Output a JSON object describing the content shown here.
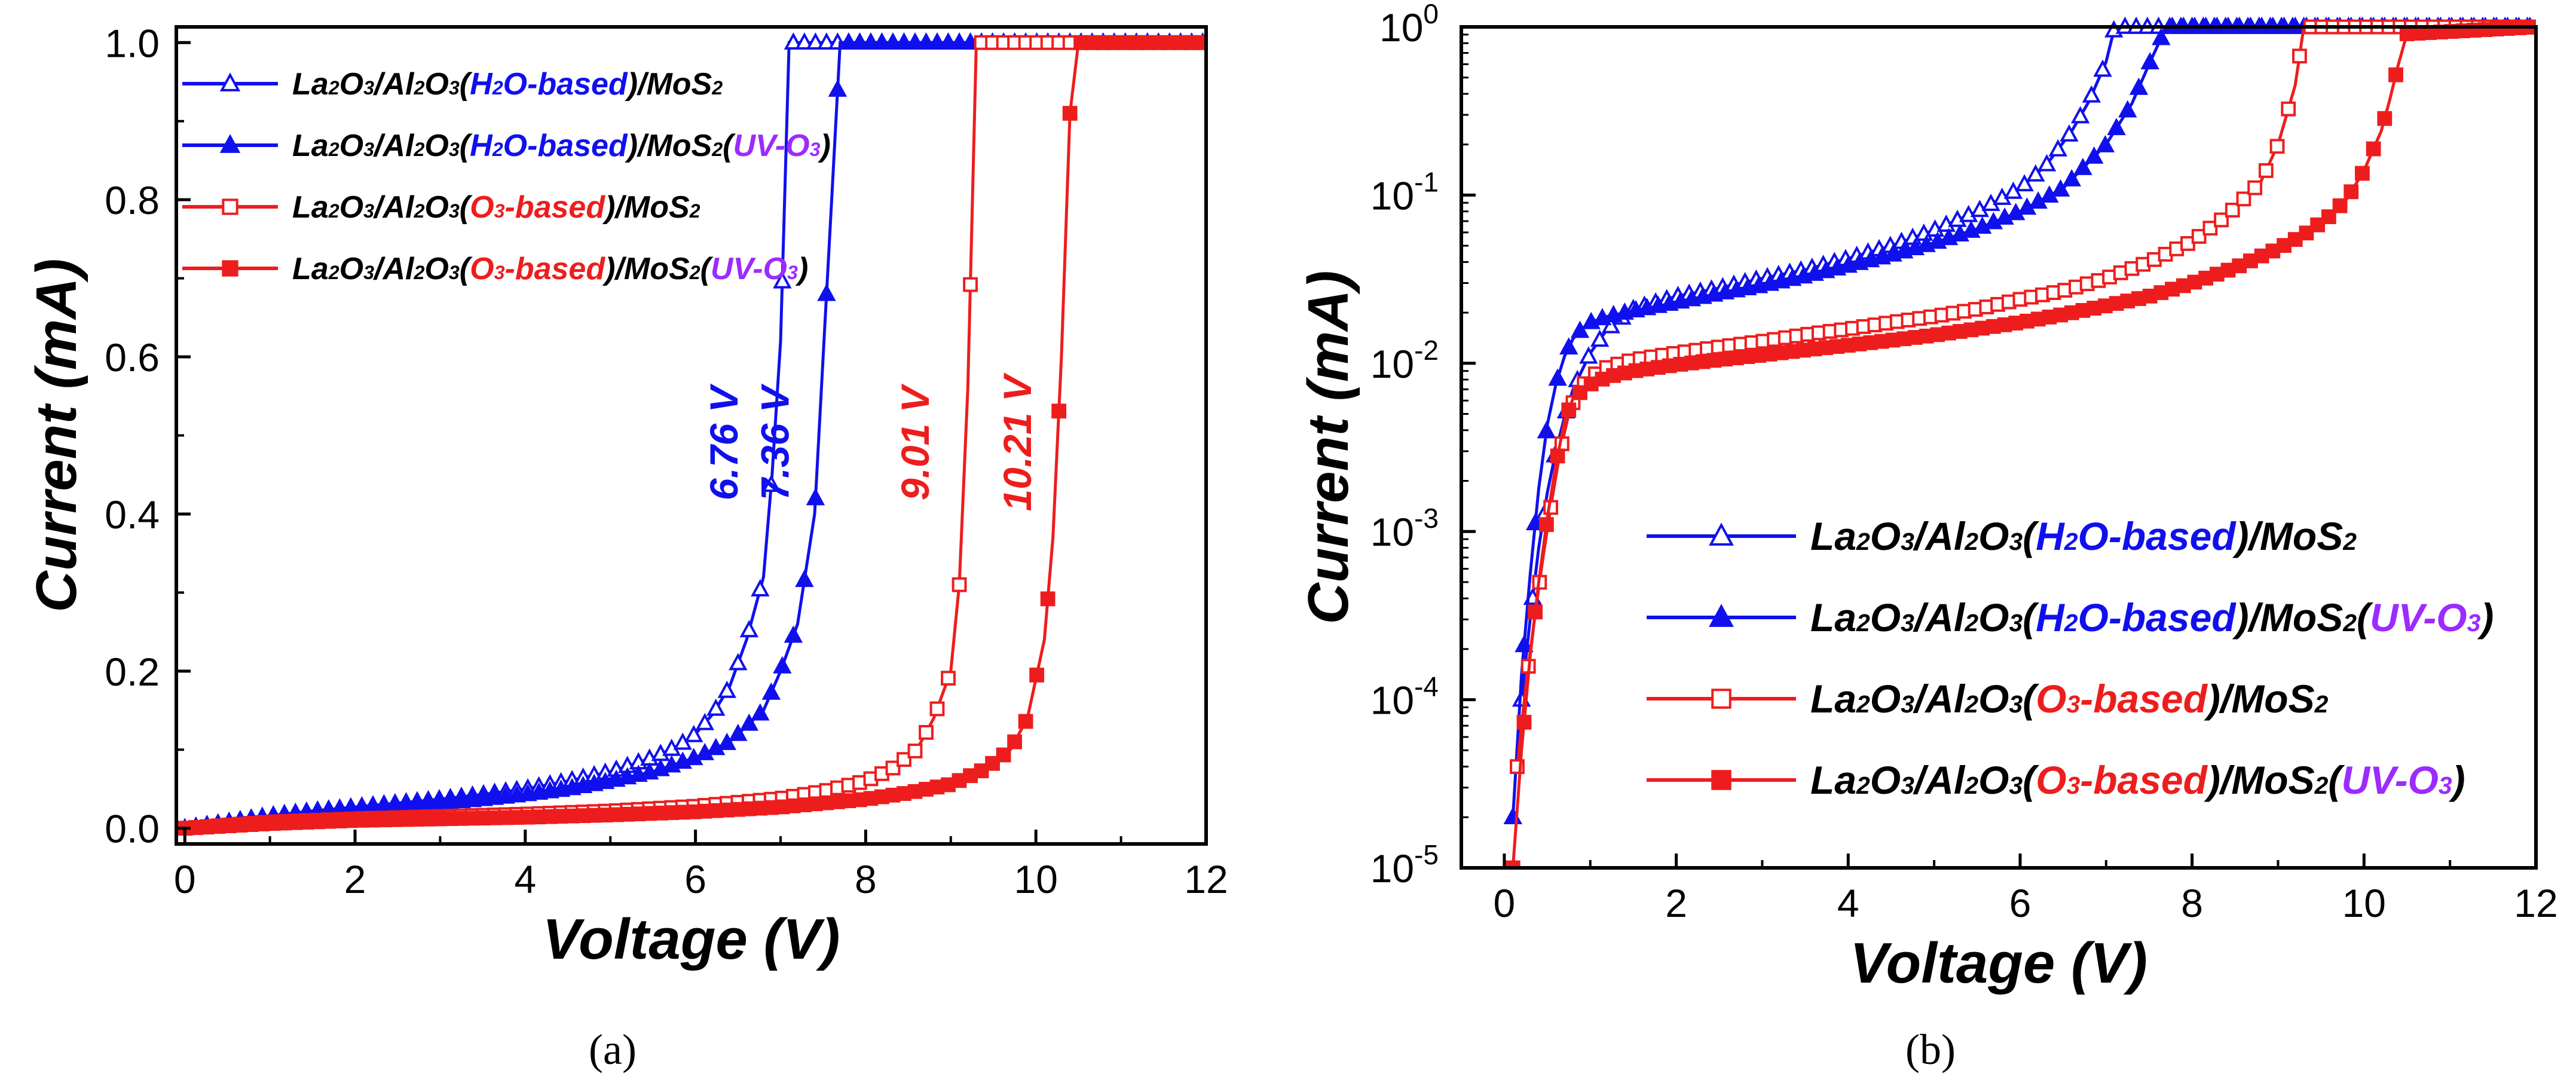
{
  "colors": {
    "blue": "#1010ee",
    "red": "#ee1d1d",
    "purple": "#9b2bff",
    "black": "#000000"
  },
  "legend_entries": [
    {
      "color": "#1010ee",
      "marker": "triangle-open",
      "parts": [
        {
          "t": "La",
          "c": "black"
        },
        {
          "t": "2",
          "c": "black",
          "s": 1
        },
        {
          "t": "O",
          "c": "black"
        },
        {
          "t": "3",
          "c": "black",
          "s": 1
        },
        {
          "t": "/Al",
          "c": "black"
        },
        {
          "t": "2",
          "c": "black",
          "s": 1
        },
        {
          "t": "O",
          "c": "black"
        },
        {
          "t": "3",
          "c": "black",
          "s": 1
        },
        {
          "t": "(",
          "c": "black"
        },
        {
          "t": "H",
          "c": "blue"
        },
        {
          "t": "2",
          "c": "blue",
          "s": 1
        },
        {
          "t": "O-based",
          "c": "blue"
        },
        {
          "t": ")/MoS",
          "c": "black"
        },
        {
          "t": "2",
          "c": "black",
          "s": 1
        }
      ]
    },
    {
      "color": "#1010ee",
      "marker": "triangle-filled",
      "parts": [
        {
          "t": "La",
          "c": "black"
        },
        {
          "t": "2",
          "c": "black",
          "s": 1
        },
        {
          "t": "O",
          "c": "black"
        },
        {
          "t": "3",
          "c": "black",
          "s": 1
        },
        {
          "t": "/Al",
          "c": "black"
        },
        {
          "t": "2",
          "c": "black",
          "s": 1
        },
        {
          "t": "O",
          "c": "black"
        },
        {
          "t": "3",
          "c": "black",
          "s": 1
        },
        {
          "t": "(",
          "c": "black"
        },
        {
          "t": "H",
          "c": "blue"
        },
        {
          "t": "2",
          "c": "blue",
          "s": 1
        },
        {
          "t": "O-based",
          "c": "blue"
        },
        {
          "t": ")/MoS",
          "c": "black"
        },
        {
          "t": "2",
          "c": "black",
          "s": 1
        },
        {
          "t": "(",
          "c": "black"
        },
        {
          "t": "UV-O",
          "c": "purple"
        },
        {
          "t": "3",
          "c": "purple",
          "s": 1
        },
        {
          "t": ")",
          "c": "black"
        }
      ]
    },
    {
      "color": "#ee1d1d",
      "marker": "square-open",
      "parts": [
        {
          "t": "La",
          "c": "black"
        },
        {
          "t": "2",
          "c": "black",
          "s": 1
        },
        {
          "t": "O",
          "c": "black"
        },
        {
          "t": "3",
          "c": "black",
          "s": 1
        },
        {
          "t": "/Al",
          "c": "black"
        },
        {
          "t": "2",
          "c": "black",
          "s": 1
        },
        {
          "t": "O",
          "c": "black"
        },
        {
          "t": "3",
          "c": "black",
          "s": 1
        },
        {
          "t": "(",
          "c": "black"
        },
        {
          "t": "O",
          "c": "red"
        },
        {
          "t": "3",
          "c": "red",
          "s": 1
        },
        {
          "t": "-based",
          "c": "red"
        },
        {
          "t": ")/MoS",
          "c": "black"
        },
        {
          "t": "2",
          "c": "black",
          "s": 1
        }
      ]
    },
    {
      "color": "#ee1d1d",
      "marker": "square-filled",
      "parts": [
        {
          "t": "La",
          "c": "black"
        },
        {
          "t": "2",
          "c": "black",
          "s": 1
        },
        {
          "t": "O",
          "c": "black"
        },
        {
          "t": "3",
          "c": "black",
          "s": 1
        },
        {
          "t": "/Al",
          "c": "black"
        },
        {
          "t": "2",
          "c": "black",
          "s": 1
        },
        {
          "t": "O",
          "c": "black"
        },
        {
          "t": "3",
          "c": "black",
          "s": 1
        },
        {
          "t": "(",
          "c": "black"
        },
        {
          "t": "O",
          "c": "red"
        },
        {
          "t": "3",
          "c": "red",
          "s": 1
        },
        {
          "t": "-based",
          "c": "red"
        },
        {
          "t": ")/MoS",
          "c": "black"
        },
        {
          "t": "2",
          "c": "black",
          "s": 1
        },
        {
          "t": "(",
          "c": "black"
        },
        {
          "t": "UV-O",
          "c": "purple"
        },
        {
          "t": "3",
          "c": "purple",
          "s": 1
        },
        {
          "t": ")",
          "c": "black"
        }
      ]
    }
  ],
  "chart_data": [
    {
      "type": "line",
      "panel": "(a)",
      "title": "",
      "xlabel": "Voltage (V)",
      "ylabel": "Current (mA)",
      "xlim": [
        -0.1,
        12
      ],
      "ylim": [
        -0.02,
        1.02
      ],
      "yscale": "linear",
      "xticks": [
        "0",
        "2",
        "4",
        "6",
        "8",
        "10",
        "12"
      ],
      "yticks": [
        "0.0",
        "0.2",
        "0.4",
        "0.6",
        "0.8",
        "1.0"
      ],
      "legend_position": "top-left",
      "annotations": [
        {
          "text": "6.76 V",
          "x": 6.76,
          "y": 0.49,
          "color": "#1010ee"
        },
        {
          "text": "7.36 V",
          "x": 7.36,
          "y": 0.49,
          "color": "#1010ee"
        },
        {
          "text": "9.01 V",
          "x": 9.01,
          "y": 0.49,
          "color": "#ee1d1d"
        },
        {
          "text": "10.21 V",
          "x": 10.21,
          "y": 0.49,
          "color": "#ee1d1d"
        }
      ],
      "series": [
        {
          "name": "La2O3/Al2O3(H2O-based)/MoS2",
          "color": "#1010ee",
          "marker": "triangle-open",
          "x": [
            0,
            0.5,
            1,
            1.5,
            2,
            2.5,
            3,
            3.5,
            4,
            4.5,
            5,
            5.5,
            5.8,
            6.0,
            6.2,
            6.4,
            6.6,
            6.8,
            6.9,
            7.0,
            7.1,
            12
          ],
          "y": [
            0,
            0.008,
            0.016,
            0.022,
            0.027,
            0.032,
            0.037,
            0.043,
            0.05,
            0.06,
            0.072,
            0.09,
            0.105,
            0.12,
            0.145,
            0.18,
            0.24,
            0.32,
            0.45,
            0.62,
            1.0,
            1.0
          ]
        },
        {
          "name": "La2O3/Al2O3(H2O-based)/MoS2(UV-O3)",
          "color": "#1010ee",
          "marker": "triangle-filled",
          "x": [
            0,
            0.5,
            1,
            1.5,
            2,
            2.5,
            3,
            3.5,
            4,
            4.5,
            5,
            5.5,
            6,
            6.4,
            6.8,
            7.0,
            7.2,
            7.4,
            7.5,
            7.6,
            7.7,
            12
          ],
          "y": [
            0,
            0.007,
            0.014,
            0.02,
            0.024,
            0.028,
            0.032,
            0.037,
            0.043,
            0.05,
            0.06,
            0.072,
            0.09,
            0.11,
            0.15,
            0.2,
            0.26,
            0.4,
            0.6,
            0.8,
            1.0,
            1.0
          ]
        },
        {
          "name": "La2O3/Al2O3(O3-based)/MoS2",
          "color": "#ee1d1d",
          "marker": "square-open",
          "x": [
            0,
            0.5,
            1,
            2,
            3,
            4,
            5,
            6,
            7,
            7.5,
            8,
            8.3,
            8.6,
            8.8,
            9.0,
            9.1,
            9.2,
            9.3,
            12
          ],
          "y": [
            0,
            0.004,
            0.008,
            0.012,
            0.015,
            0.018,
            0.022,
            0.028,
            0.038,
            0.047,
            0.06,
            0.075,
            0.1,
            0.14,
            0.2,
            0.31,
            0.56,
            1.0,
            1.0
          ]
        },
        {
          "name": "La2O3/Al2O3(O3-based)/MoS2(UV-O3)",
          "color": "#ee1d1d",
          "marker": "square-filled",
          "x": [
            0,
            0.5,
            1,
            2,
            3,
            4,
            5,
            6,
            7,
            8,
            8.5,
            9,
            9.4,
            9.7,
            9.9,
            10.1,
            10.2,
            10.3,
            10.4,
            10.5,
            12
          ],
          "y": [
            0,
            0.003,
            0.006,
            0.01,
            0.012,
            0.014,
            0.017,
            0.021,
            0.027,
            0.037,
            0.045,
            0.056,
            0.075,
            0.1,
            0.14,
            0.24,
            0.37,
            0.6,
            0.91,
            1.0,
            1.0
          ]
        }
      ]
    },
    {
      "type": "line",
      "panel": "(b)",
      "title": "",
      "xlabel": "Voltage (V)",
      "ylabel": "Current (mA)",
      "xlim": [
        -0.5,
        12
      ],
      "ylim": [
        1e-05,
        1
      ],
      "yscale": "log",
      "xticks": [
        "0",
        "2",
        "4",
        "6",
        "8",
        "10",
        "12"
      ],
      "yticks": [
        {
          "base": "10",
          "exp": "-5"
        },
        {
          "base": "10",
          "exp": "-4"
        },
        {
          "base": "10",
          "exp": "-3"
        },
        {
          "base": "10",
          "exp": "-2"
        },
        {
          "base": "10",
          "exp": "-1"
        },
        {
          "base": "10",
          "exp": "0"
        }
      ],
      "legend_position": "center-right",
      "series": [
        {
          "name": "La2O3/Al2O3(H2O-based)/MoS2",
          "color": "#1010ee",
          "marker": "triangle-open",
          "x": [
            0.2,
            0.3,
            0.4,
            0.5,
            0.6,
            0.7,
            0.8,
            0.9,
            1.0,
            1.2,
            1.5,
            2,
            2.5,
            3,
            3.5,
            4,
            4.5,
            5,
            5.5,
            6,
            6.3,
            6.6,
            6.8,
            7.0,
            7.1,
            12
          ],
          "y": [
            0.0001,
            0.0003,
            0.0008,
            0.0017,
            0.003,
            0.0048,
            0.007,
            0.009,
            0.0115,
            0.016,
            0.021,
            0.025,
            0.028,
            0.032,
            0.036,
            0.042,
            0.05,
            0.062,
            0.08,
            0.11,
            0.15,
            0.24,
            0.36,
            0.62,
            1.0,
            1.0
          ]
        },
        {
          "name": "La2O3/Al2O3(H2O-based)/MoS2(UV-O3)",
          "color": "#1010ee",
          "marker": "triangle-filled",
          "x": [
            0.1,
            0.2,
            0.3,
            0.4,
            0.5,
            0.6,
            0.7,
            0.8,
            0.9,
            1.0,
            1.2,
            1.5,
            2,
            2.5,
            3,
            3.5,
            4,
            4.5,
            5,
            5.5,
            6,
            6.5,
            7,
            7.3,
            7.5,
            7.7,
            12
          ],
          "y": [
            2e-05,
            0.00014,
            0.00055,
            0.0018,
            0.0043,
            0.0075,
            0.011,
            0.014,
            0.016,
            0.0175,
            0.019,
            0.0205,
            0.023,
            0.026,
            0.029,
            0.033,
            0.038,
            0.044,
            0.052,
            0.063,
            0.08,
            0.11,
            0.2,
            0.35,
            0.6,
            1.0,
            1.0
          ]
        },
        {
          "name": "La2O3/Al2O3(O3-based)/MoS2",
          "color": "#ee1d1d",
          "marker": "square-open",
          "x": [
            0.15,
            0.25,
            0.35,
            0.45,
            0.55,
            0.65,
            0.75,
            0.85,
            1.0,
            1.2,
            1.5,
            2,
            2.5,
            3,
            3.5,
            4,
            4.5,
            5,
            5.5,
            6,
            6.5,
            7,
            7.5,
            8,
            8.4,
            8.8,
            9.0,
            9.2,
            9.3,
            12
          ],
          "y": [
            4e-05,
            0.00012,
            0.0003,
            0.0007,
            0.0015,
            0.003,
            0.005,
            0.0068,
            0.0083,
            0.0095,
            0.0105,
            0.0115,
            0.0125,
            0.0135,
            0.0148,
            0.016,
            0.0175,
            0.019,
            0.021,
            0.024,
            0.027,
            0.032,
            0.04,
            0.053,
            0.075,
            0.12,
            0.2,
            0.45,
            1.0,
            1.0
          ]
        },
        {
          "name": "La2O3/Al2O3(O3-based)/MoS2(UV-O3)",
          "color": "#ee1d1d",
          "marker": "square-filled",
          "x": [
            0.1,
            0.2,
            0.3,
            0.4,
            0.5,
            0.6,
            0.7,
            0.8,
            1.0,
            1.2,
            1.5,
            2,
            2.5,
            3,
            3.5,
            4,
            4.5,
            5,
            5.5,
            6,
            6.5,
            7,
            7.5,
            8,
            8.5,
            9,
            9.3,
            9.6,
            9.8,
            10.0,
            10.2,
            10.3,
            10.4,
            10.5,
            12
          ],
          "y": [
            8e-06,
            5e-05,
            0.00018,
            0.0005,
            0.0012,
            0.0025,
            0.0045,
            0.0062,
            0.0075,
            0.0083,
            0.009,
            0.0098,
            0.0105,
            0.0112,
            0.012,
            0.0128,
            0.0137,
            0.0147,
            0.016,
            0.0175,
            0.0195,
            0.022,
            0.025,
            0.03,
            0.037,
            0.048,
            0.058,
            0.075,
            0.095,
            0.14,
            0.24,
            0.37,
            0.6,
            0.91,
            1.0
          ]
        }
      ]
    }
  ]
}
